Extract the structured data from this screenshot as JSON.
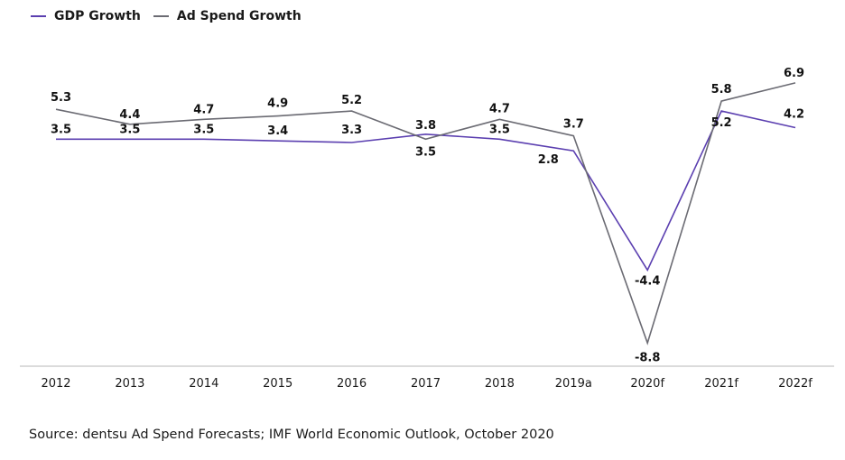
{
  "chart_data": {
    "type": "line",
    "title": "",
    "xlabel": "",
    "ylabel": "",
    "categories": [
      "2012",
      "2013",
      "2014",
      "2015",
      "2016",
      "2017",
      "2018",
      "2019a",
      "2020f",
      "2021f",
      "2022f"
    ],
    "series": [
      {
        "name": "GDP Growth",
        "color": "#5b3fb0",
        "values": [
          3.5,
          3.5,
          3.5,
          3.4,
          3.3,
          3.8,
          3.5,
          2.8,
          -4.4,
          5.2,
          4.2
        ]
      },
      {
        "name": "Ad Spend Growth",
        "color": "#6b6b73",
        "values": [
          5.3,
          4.4,
          4.7,
          4.9,
          5.2,
          3.5,
          4.7,
          3.7,
          -8.8,
          5.8,
          6.9
        ]
      }
    ],
    "ylim": [
      -10.2,
      11.9
    ],
    "grid": false,
    "legend": "top-left",
    "source": "Source: dentsu Ad Spend Forecasts; IMF World Economic Outlook, October 2020"
  }
}
